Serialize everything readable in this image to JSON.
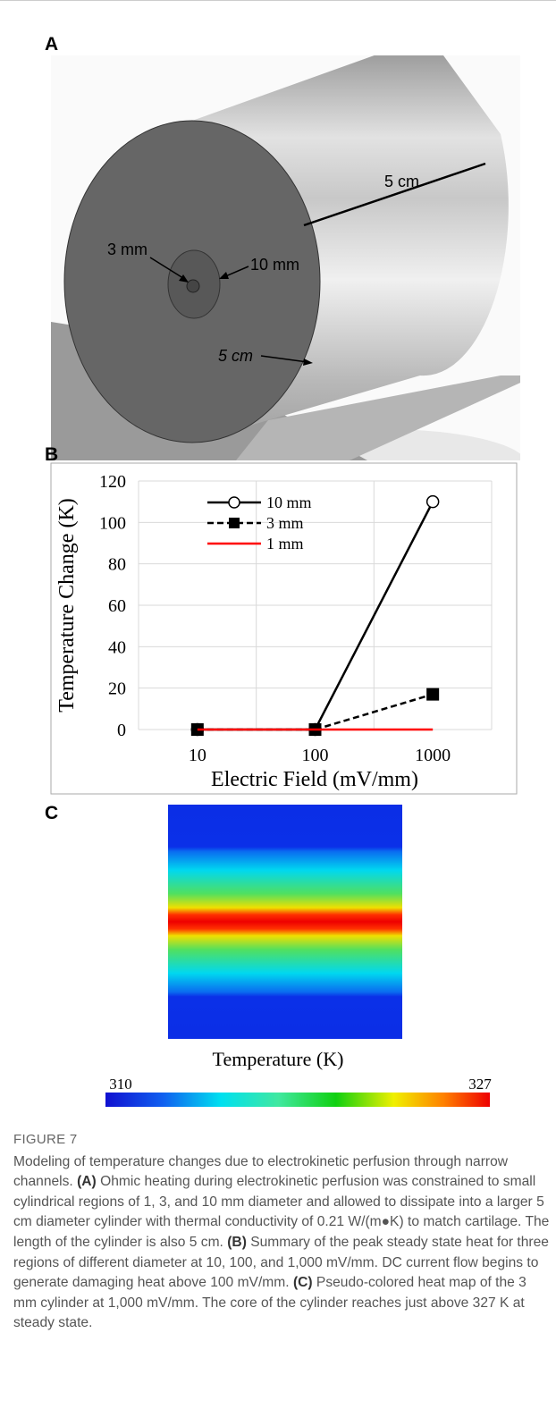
{
  "figure": {
    "panels": {
      "a": {
        "label": "A",
        "annotations": [
          "5 cm",
          "3 mm",
          "10 mm",
          "5 cm"
        ]
      },
      "b": {
        "label": "B"
      },
      "c": {
        "label": "C",
        "heatmap_title": "Temperature (K)",
        "colorbar_min": 310,
        "colorbar_max": 327
      }
    }
  },
  "chart_data": {
    "type": "line",
    "x_label": "Electric Field (mV/mm)",
    "y_label": "Temperature Change (K)",
    "categories": [
      "10",
      "100",
      "1000"
    ],
    "series": [
      {
        "name": "10 mm",
        "color": "#000000",
        "line_style": "solid",
        "marker": "circle-open",
        "values": [
          0,
          0,
          110
        ]
      },
      {
        "name": "3 mm",
        "color": "#000000",
        "line_style": "dashed",
        "marker": "square",
        "values": [
          0,
          0,
          17
        ]
      },
      {
        "name": "1 mm",
        "color": "#ff0000",
        "line_style": "solid",
        "marker": "none",
        "values": [
          0,
          0,
          0
        ]
      }
    ],
    "ylim": [
      0,
      120
    ],
    "yticks": [
      0,
      20,
      40,
      60,
      80,
      100,
      120
    ],
    "grid": true
  },
  "caption": {
    "title": "FIGURE 7",
    "segments": [
      "Modeling of temperature changes due to electrokinetic perfusion through narrow channels. ",
      "(A)",
      " Ohmic heating during electrokinetic perfusion was constrained to small cylindrical regions of 1, 3, and 10 mm diameter and allowed to dissipate into a larger 5 cm diameter cylinder with thermal conductivity of 0.21 W/(m●K) to match cartilage. The length of the cylinder is also 5 cm. ",
      "(B)",
      " Summary of the peak steady state heat for three regions of different diameter at 10, 100, and 1,000 mV/mm. DC current flow begins to generate damaging heat above 100 mV/mm. ",
      "(C)",
      " Pseudo-colored heat map of the 3 mm cylinder at 1,000 mV/mm. The core of the cylinder reaches just above 327 K at steady state."
    ]
  }
}
